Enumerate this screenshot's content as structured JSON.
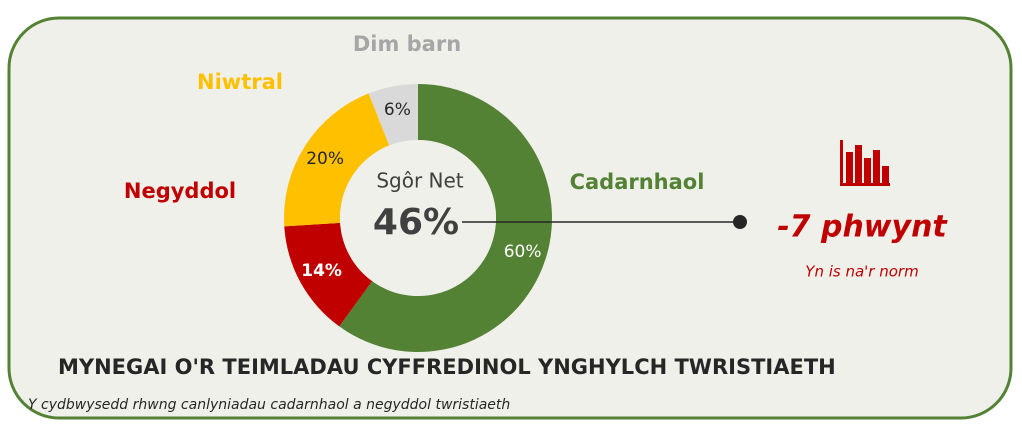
{
  "chart_data": {
    "type": "pie",
    "donut": true,
    "categories": [
      "Cadarnhaol",
      "Negyddol",
      "Niwtral",
      "Dim barn"
    ],
    "values": [
      60,
      14,
      20,
      6
    ],
    "value_labels": [
      "60%",
      "14%",
      "20%",
      "6%"
    ],
    "colors": [
      "#548235",
      "#c00000",
      "#ffc000",
      "#d9d9d9"
    ],
    "label_colors": [
      "#548235",
      "#c00000",
      "#ffc000",
      "#a6a6a6"
    ],
    "center_label": "Sgôr Net",
    "center_value": "46%",
    "change": "-7 phwynt",
    "change_note": "Yn is na'r norm",
    "title": "MYNEGAI O'R TEIMLADAU CYFFREDINOL YNGHYLCH TWRISTIAETH",
    "subtitle": "Y cydbwysedd rhwng canlyniadau cadarnhaol a negyddol twristiaeth"
  }
}
